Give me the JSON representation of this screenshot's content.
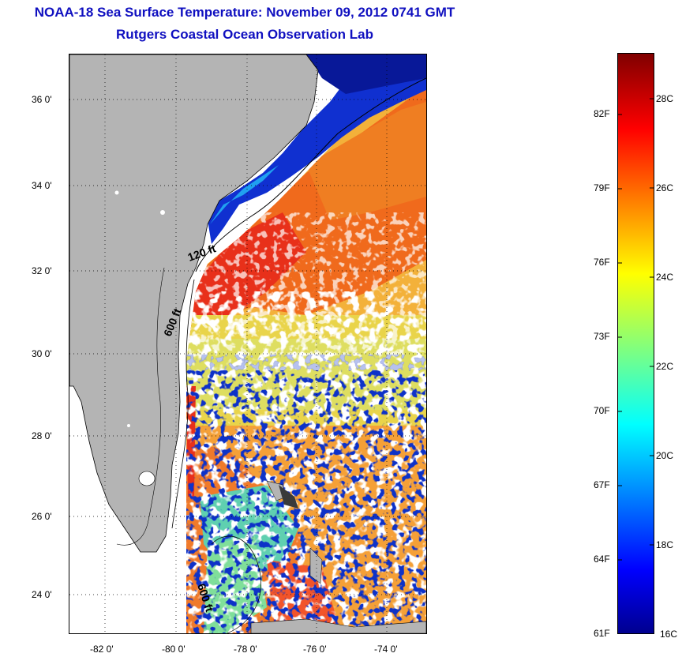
{
  "header": {
    "title": "NOAA-18 Sea Surface Temperature:  November 09, 2012 0741 GMT",
    "subtitle": "Rutgers Coastal Ocean Observation Lab"
  },
  "map": {
    "lat_ticks": [
      "36 0'",
      "34 0'",
      "32 0'",
      "30 0'",
      "28 0'",
      "26 0'",
      "24 0'"
    ],
    "lon_ticks": [
      "-82 0'",
      "-80 0'",
      "-78 0'",
      "-76 0'",
      "-74 0'"
    ],
    "contour_labels": [
      "120 ft",
      "600 ft",
      "600 ft"
    ],
    "land_color": "#b4b4b4",
    "cloud_color": "#ffffff"
  },
  "colorbar": {
    "fahrenheit_labels": [
      "82F",
      "79F",
      "76F",
      "73F",
      "70F",
      "67F",
      "64F",
      "61F"
    ],
    "celsius_labels": [
      "28C",
      "26C",
      "24C",
      "22C",
      "20C",
      "18C",
      "16C"
    ],
    "colormap": "jet",
    "range_c": [
      16,
      29.5
    ]
  }
}
